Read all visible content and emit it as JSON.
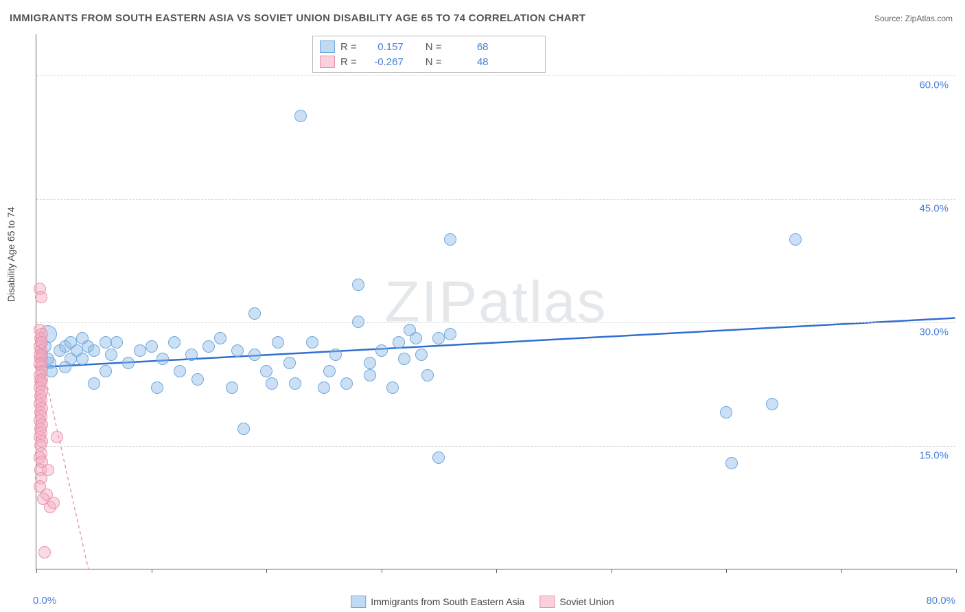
{
  "title": "IMMIGRANTS FROM SOUTH EASTERN ASIA VS SOVIET UNION DISABILITY AGE 65 TO 74 CORRELATION CHART",
  "source": "Source: ZipAtlas.com",
  "ylabel": "Disability Age 65 to 74",
  "watermark": "ZIPatlas",
  "chart": {
    "type": "scatter",
    "xlim": [
      0,
      80
    ],
    "ylim": [
      0,
      65
    ],
    "xticks": [
      0,
      10,
      20,
      30,
      40,
      50,
      60,
      70,
      80
    ],
    "yticks": [
      15,
      30,
      45,
      60
    ],
    "ytick_labels": [
      "15.0%",
      "30.0%",
      "45.0%",
      "60.0%"
    ],
    "x_min_label": "0.0%",
    "x_max_label": "80.0%",
    "background_color": "#ffffff",
    "grid_color": "#d0d0d0",
    "axis_color": "#666666",
    "tick_label_color": "#4a7fd8",
    "marker_radius": 9,
    "marker_radius_large": 13
  },
  "series": [
    {
      "name": "Immigrants from South Eastern Asia",
      "key": "blue",
      "color_fill": "rgba(140,187,232,0.45)",
      "color_stroke": "#6fa8dc",
      "trend_color": "#2f6fd0",
      "trend_width": 2.5,
      "trend_dash": "none",
      "R": "0.157",
      "N": "68",
      "trend": {
        "x1": 0,
        "y1": 24.5,
        "x2": 80,
        "y2": 30.5
      },
      "points": [
        [
          0.5,
          26
        ],
        [
          0.8,
          27
        ],
        [
          1.0,
          28.5,
          13
        ],
        [
          1.2,
          25
        ],
        [
          1.3,
          24
        ],
        [
          1.0,
          25.5
        ],
        [
          2.0,
          26.5
        ],
        [
          2.5,
          27
        ],
        [
          2.5,
          24.5
        ],
        [
          3.0,
          27.5
        ],
        [
          3.0,
          25.5
        ],
        [
          3.5,
          26.5
        ],
        [
          4.0,
          25.5
        ],
        [
          4.0,
          28
        ],
        [
          4.5,
          27
        ],
        [
          5.0,
          26.5
        ],
        [
          5.0,
          22.5
        ],
        [
          6.0,
          27.5
        ],
        [
          6.0,
          24
        ],
        [
          6.5,
          26
        ],
        [
          7.0,
          27.5
        ],
        [
          8.0,
          25
        ],
        [
          9.0,
          26.5
        ],
        [
          10.0,
          27
        ],
        [
          10.5,
          22
        ],
        [
          11.0,
          25.5
        ],
        [
          12.0,
          27.5
        ],
        [
          12.5,
          24
        ],
        [
          13.5,
          26
        ],
        [
          14.0,
          23
        ],
        [
          15.0,
          27
        ],
        [
          16.0,
          28
        ],
        [
          17.0,
          22
        ],
        [
          17.5,
          26.5
        ],
        [
          18.0,
          17
        ],
        [
          19.0,
          31
        ],
        [
          19.0,
          26
        ],
        [
          20.0,
          24
        ],
        [
          20.5,
          22.5
        ],
        [
          21.0,
          27.5
        ],
        [
          22.0,
          25
        ],
        [
          22.5,
          22.5
        ],
        [
          23.0,
          55
        ],
        [
          24.0,
          27.5
        ],
        [
          25.0,
          22
        ],
        [
          25.5,
          24
        ],
        [
          26.0,
          26
        ],
        [
          27.0,
          22.5
        ],
        [
          28.0,
          30
        ],
        [
          28.0,
          34.5
        ],
        [
          29.0,
          25
        ],
        [
          29.0,
          23.5
        ],
        [
          30.0,
          26.5
        ],
        [
          31.0,
          22
        ],
        [
          31.5,
          27.5
        ],
        [
          32.0,
          25.5
        ],
        [
          32.5,
          29
        ],
        [
          33.0,
          28
        ],
        [
          33.5,
          26
        ],
        [
          34.0,
          23.5
        ],
        [
          35.0,
          28
        ],
        [
          35.0,
          13.5
        ],
        [
          36.0,
          28.5
        ],
        [
          36.0,
          40
        ],
        [
          60.5,
          12.8
        ],
        [
          60.0,
          19
        ],
        [
          66.0,
          40
        ],
        [
          64.0,
          20
        ]
      ]
    },
    {
      "name": "Soviet Union",
      "key": "pink",
      "color_fill": "rgba(245,170,190,0.45)",
      "color_stroke": "#e895ad",
      "trend_color": "#e895ad",
      "trend_width": 1.4,
      "trend_dash": "5,4",
      "R": "-0.267",
      "N": "48",
      "trend": {
        "x1": 0,
        "y1": 28,
        "x2": 4.5,
        "y2": 0
      },
      "points": [
        [
          0.3,
          34
        ],
        [
          0.4,
          33
        ],
        [
          0.3,
          29
        ],
        [
          0.5,
          28.5
        ],
        [
          0.35,
          28
        ],
        [
          0.4,
          27.5
        ],
        [
          0.3,
          27
        ],
        [
          0.4,
          26.5
        ],
        [
          0.3,
          26
        ],
        [
          0.5,
          25.8
        ],
        [
          0.35,
          25.5
        ],
        [
          0.45,
          25
        ],
        [
          0.3,
          24.8
        ],
        [
          0.4,
          24.5
        ],
        [
          0.5,
          24
        ],
        [
          0.3,
          23.5
        ],
        [
          0.45,
          23
        ],
        [
          0.35,
          22.8
        ],
        [
          0.4,
          22.5
        ],
        [
          0.3,
          22
        ],
        [
          0.5,
          21.5
        ],
        [
          0.35,
          21
        ],
        [
          0.4,
          20.5
        ],
        [
          0.3,
          20
        ],
        [
          0.45,
          19.5
        ],
        [
          0.35,
          19
        ],
        [
          0.4,
          18.5
        ],
        [
          0.3,
          18
        ],
        [
          0.5,
          17.5
        ],
        [
          0.35,
          17
        ],
        [
          0.4,
          16.5
        ],
        [
          0.3,
          16
        ],
        [
          0.45,
          15.5
        ],
        [
          0.35,
          15
        ],
        [
          0.4,
          14
        ],
        [
          0.3,
          13.5
        ],
        [
          0.5,
          13
        ],
        [
          0.35,
          12
        ],
        [
          0.4,
          11
        ],
        [
          0.3,
          10
        ],
        [
          0.9,
          9
        ],
        [
          0.6,
          8.5
        ],
        [
          1.2,
          7.5
        ],
        [
          1.0,
          12
        ],
        [
          1.5,
          8
        ],
        [
          1.8,
          16
        ],
        [
          0.7,
          2
        ],
        [
          0.5,
          27.5
        ]
      ]
    }
  ],
  "legend_top": {
    "r_label": "R =",
    "n_label": "N ="
  },
  "legend_bottom": [
    {
      "key": "blue",
      "label": "Immigrants from South Eastern Asia"
    },
    {
      "key": "pink",
      "label": "Soviet Union"
    }
  ]
}
